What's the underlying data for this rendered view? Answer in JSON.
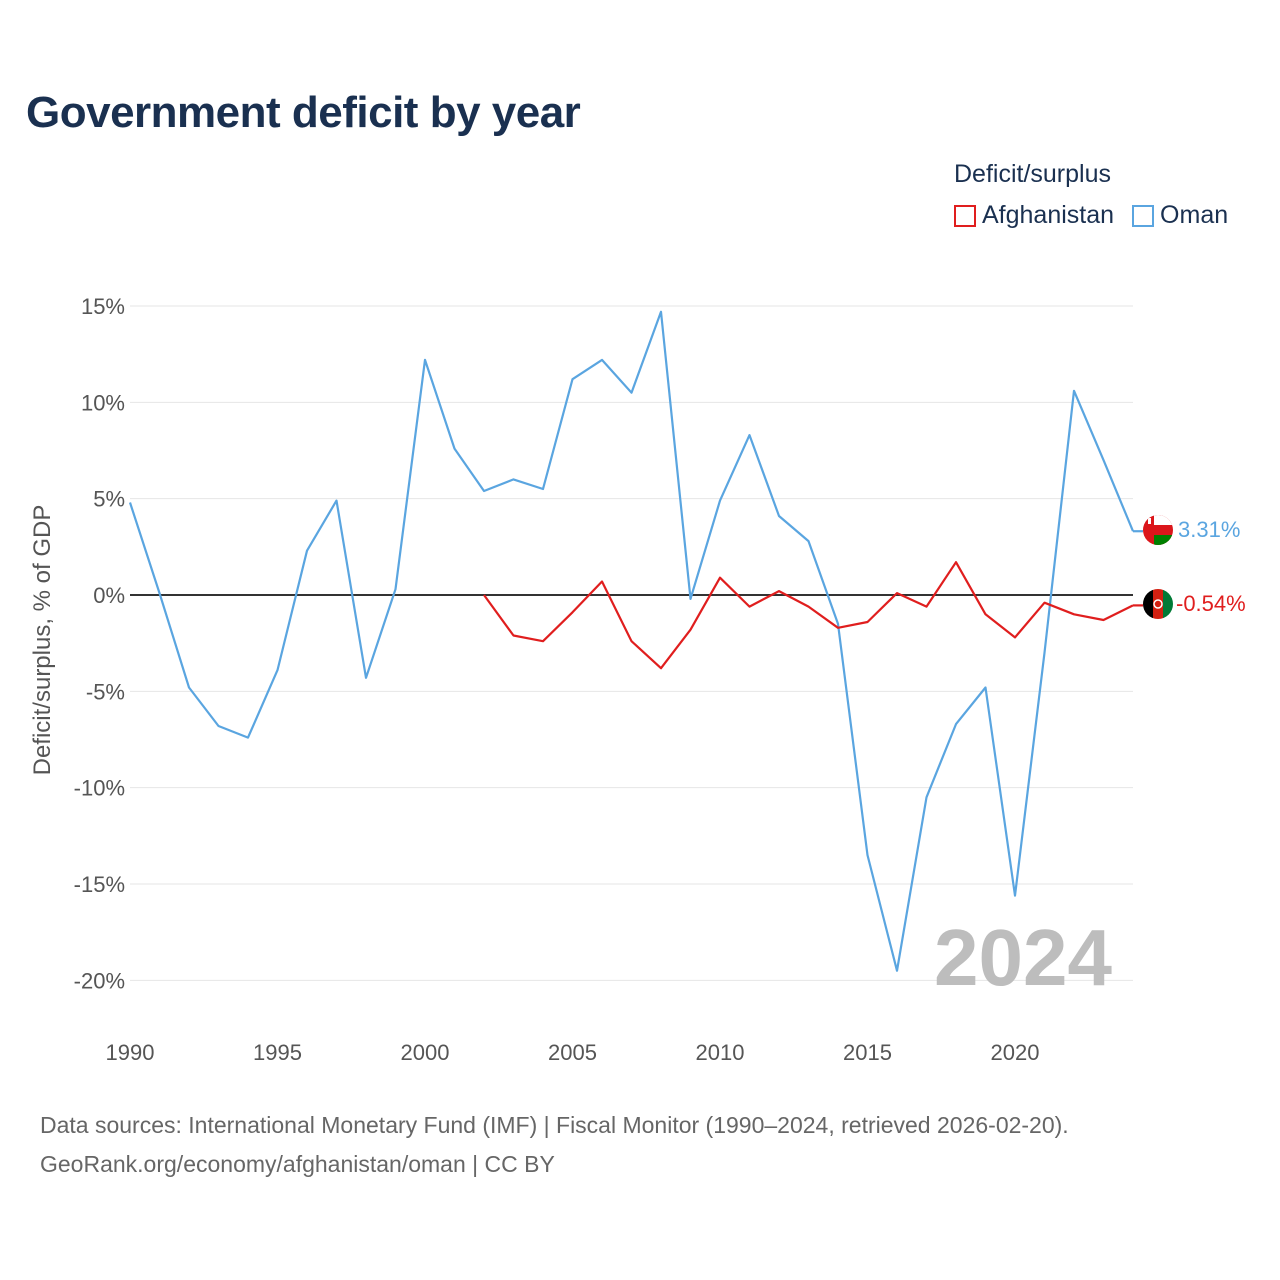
{
  "title": "Government deficit by year",
  "legend": {
    "title": "Deficit/surplus",
    "items": [
      {
        "label": "Afghanistan",
        "color": "#e01e1e"
      },
      {
        "label": "Oman",
        "color": "#5aa5e0"
      }
    ]
  },
  "chart_data": {
    "type": "line",
    "title": "Government deficit by year",
    "xlabel": "",
    "ylabel": "Deficit/surplus, % of GDP",
    "xlim": [
      1990,
      2024
    ],
    "ylim": [
      -22,
      16
    ],
    "x_ticks": [
      1990,
      1995,
      2000,
      2005,
      2010,
      2015,
      2020
    ],
    "y_ticks": [
      15,
      10,
      5,
      0,
      -5,
      -10,
      -15,
      -20
    ],
    "y_tick_labels": [
      "15%",
      "10%",
      "5%",
      "0%",
      "-5%",
      "-10%",
      "-15%",
      "-20%"
    ],
    "x_tick_labels": [
      "1990",
      "1995",
      "2000",
      "2005",
      "2010",
      "2015",
      "2020"
    ],
    "grid": true,
    "watermark_year": "2024",
    "series": [
      {
        "name": "Oman",
        "color": "#5aa5e0",
        "end_label": "3.31%",
        "x": [
          1990,
          1991,
          1992,
          1993,
          1994,
          1995,
          1996,
          1997,
          1998,
          1999,
          2000,
          2001,
          2002,
          2003,
          2004,
          2005,
          2006,
          2007,
          2008,
          2009,
          2010,
          2011,
          2012,
          2013,
          2014,
          2015,
          2016,
          2017,
          2018,
          2019,
          2020,
          2021,
          2022,
          2023,
          2024
        ],
        "values": [
          4.8,
          0.1,
          -4.8,
          -6.8,
          -7.4,
          -3.9,
          2.3,
          4.9,
          -4.3,
          0.3,
          12.2,
          7.6,
          5.4,
          6.0,
          5.5,
          11.2,
          12.2,
          10.5,
          14.7,
          -0.2,
          4.9,
          8.3,
          4.1,
          2.8,
          -1.5,
          -13.5,
          -19.5,
          -10.5,
          -6.7,
          -4.8,
          -15.6,
          -3.0,
          10.6,
          7.0,
          3.31
        ]
      },
      {
        "name": "Afghanistan",
        "color": "#e01e1e",
        "end_label": "-0.54%",
        "x": [
          2002,
          2003,
          2004,
          2005,
          2006,
          2007,
          2008,
          2009,
          2010,
          2011,
          2012,
          2013,
          2014,
          2015,
          2016,
          2017,
          2018,
          2019,
          2020,
          2021,
          2022,
          2023,
          2024
        ],
        "values": [
          0.0,
          -2.1,
          -2.4,
          -0.9,
          0.7,
          -2.4,
          -3.8,
          -1.8,
          0.9,
          -0.6,
          0.2,
          -0.6,
          -1.7,
          -1.4,
          0.1,
          -0.6,
          1.7,
          -1.0,
          -2.2,
          -0.4,
          -1.0,
          -1.3,
          -0.54
        ]
      }
    ]
  },
  "sources": {
    "line1": "Data sources: International Monetary Fund (IMF) | Fiscal Monitor (1990–2024, retrieved 2026-02-20).",
    "line2": "GeoRank.org/economy/afghanistan/oman | CC BY"
  }
}
